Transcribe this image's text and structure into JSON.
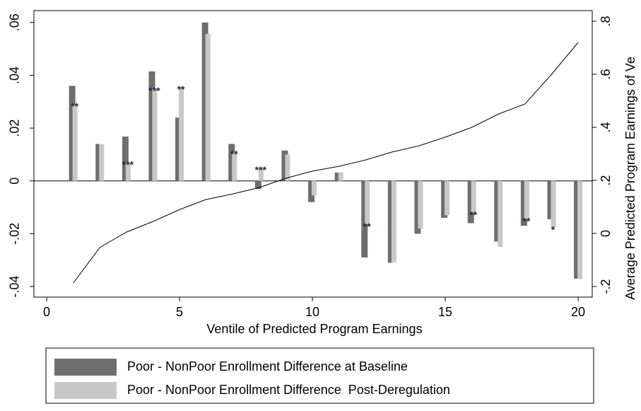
{
  "chart_data": {
    "type": "bar",
    "x_label": "Ventile of Predicted Program Earnings",
    "y2_label": "Average Predicted Program Earnings of Ve",
    "x": [
      1,
      2,
      3,
      4,
      5,
      6,
      7,
      8,
      9,
      10,
      11,
      12,
      13,
      14,
      15,
      16,
      17,
      18,
      19,
      20
    ],
    "xlim": [
      -0.48,
      20.53
    ],
    "xticks": [
      0,
      5,
      10,
      15,
      20
    ],
    "ylim": [
      -0.044,
      0.0645
    ],
    "yticks": [
      {
        "value": 0.06,
        "label": ".06"
      },
      {
        "value": 0.04,
        "label": ".04"
      },
      {
        "value": 0.02,
        "label": ".02"
      },
      0,
      {
        "value": -0.02,
        "label": "-.02"
      },
      {
        "value": -0.04,
        "label": "-.04"
      }
    ],
    "y2lim": [
      -0.24,
      0.84
    ],
    "y2ticks": [
      {
        "value": 0.8,
        "label": ".8"
      },
      {
        "value": 0.6,
        "label": ".6"
      },
      {
        "value": 0.4,
        "label": ".4"
      },
      {
        "value": 0.2,
        "label": ".2"
      },
      0,
      {
        "value": -0.2,
        "label": "-.2"
      }
    ],
    "series": [
      {
        "name": "Poor - NonPoor Enrollment Difference at Baseline",
        "color": "#6e6e6e",
        "values": [
          0.036,
          0.014,
          0.0168,
          0.0415,
          0.024,
          0.06,
          0.014,
          -0.003,
          0.0115,
          -0.008,
          0.0032,
          -0.029,
          -0.031,
          -0.02,
          -0.014,
          -0.016,
          -0.023,
          -0.017,
          -0.0145,
          -0.037
        ]
      },
      {
        "name": "Poor - NonPoor Enrollment Difference  Post-Deregulation",
        "color": "#c8c8c8",
        "values": [
          0.029,
          0.014,
          0.007,
          0.035,
          0.0355,
          0.0557,
          0.011,
          0.005,
          0.01,
          -0.0055,
          0.0032,
          -0.0165,
          -0.031,
          -0.018,
          -0.013,
          -0.012,
          -0.025,
          -0.0145,
          -0.0177,
          -0.0372
        ],
        "significance": [
          "**",
          null,
          "***",
          "***",
          "**",
          null,
          "**",
          "***",
          null,
          null,
          null,
          "**",
          null,
          null,
          null,
          "**",
          null,
          "**",
          "*",
          null
        ]
      },
      {
        "type": "line",
        "axis": "y2",
        "color": "#000000",
        "values": [
          -0.187,
          -0.053,
          0.005,
          0.045,
          0.09,
          0.128,
          0.149,
          0.173,
          0.208,
          0.235,
          0.253,
          0.277,
          0.307,
          0.33,
          0.363,
          0.4,
          0.45,
          0.488,
          0.6,
          0.72
        ]
      }
    ]
  }
}
